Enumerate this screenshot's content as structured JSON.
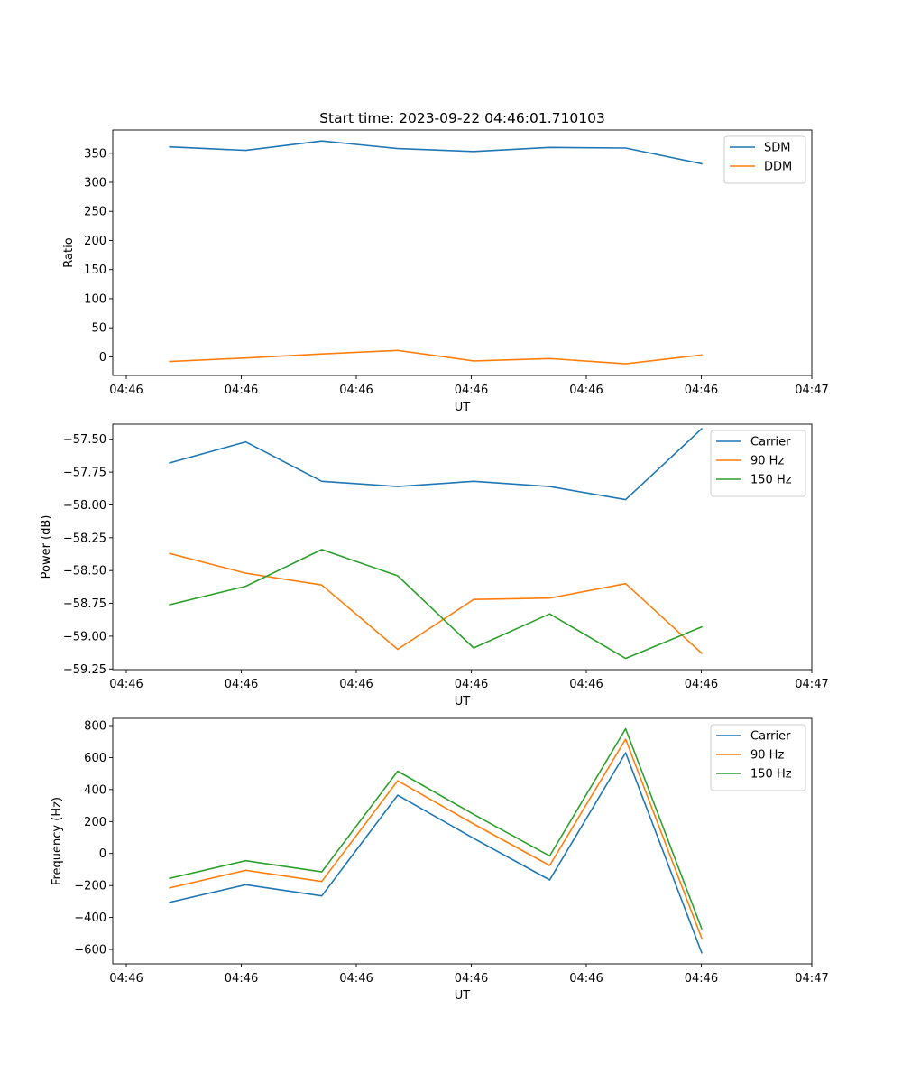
{
  "chart_data": [
    {
      "type": "line",
      "title": "Start time: 2023-09-22 04:46:01.710103",
      "xlabel": "UT",
      "ylabel": "Ratio",
      "x_tick_labels": [
        "04:46",
        "04:46",
        "04:46",
        "04:46",
        "04:46",
        "04:46",
        "04:47"
      ],
      "x_index_range": [
        -0.75,
        8.45
      ],
      "ylim": [
        -32,
        390
      ],
      "y_ticks": [
        0,
        50,
        100,
        150,
        200,
        250,
        300,
        350
      ],
      "y_tick_labels": [
        "0",
        "50",
        "100",
        "150",
        "200",
        "250",
        "300",
        "350"
      ],
      "legend": "top-right",
      "series": [
        {
          "name": "SDM",
          "color": "#1f77b4",
          "values": [
            361,
            355,
            371,
            358,
            353,
            360,
            359,
            332
          ]
        },
        {
          "name": "DDM",
          "color": "#ff7f0e",
          "values": [
            -8,
            -2,
            5,
            11,
            -7,
            -3,
            -12,
            3
          ]
        }
      ]
    },
    {
      "type": "line",
      "title": "",
      "xlabel": "UT",
      "ylabel": "Power (dB)",
      "x_tick_labels": [
        "04:46",
        "04:46",
        "04:46",
        "04:46",
        "04:46",
        "04:46",
        "04:47"
      ],
      "x_index_range": [
        -0.75,
        8.45
      ],
      "ylim": [
        -59.255,
        -57.385
      ],
      "y_ticks": [
        -59.25,
        -59.0,
        -58.75,
        -58.5,
        -58.25,
        -58.0,
        -57.75,
        -57.5
      ],
      "y_tick_labels": [
        "−59.25",
        "−59.00",
        "−58.75",
        "−58.50",
        "−58.25",
        "−58.00",
        "−57.75",
        "−57.50"
      ],
      "legend": "top-right",
      "series": [
        {
          "name": "Carrier",
          "color": "#1f77b4",
          "values": [
            -57.68,
            -57.52,
            -57.82,
            -57.86,
            -57.82,
            -57.86,
            -57.96,
            -57.42
          ]
        },
        {
          "name": "90 Hz",
          "color": "#ff7f0e",
          "values": [
            -58.37,
            -58.52,
            -58.61,
            -59.1,
            -58.72,
            -58.71,
            -58.6,
            -59.13
          ]
        },
        {
          "name": "150 Hz",
          "color": "#2ca02c",
          "values": [
            -58.76,
            -58.62,
            -58.34,
            -58.54,
            -59.09,
            -58.83,
            -59.17,
            -58.93
          ]
        }
      ]
    },
    {
      "type": "line",
      "title": "",
      "xlabel": "UT",
      "ylabel": "Frequency (Hz)",
      "x_tick_labels": [
        "04:46",
        "04:46",
        "04:46",
        "04:46",
        "04:46",
        "04:46",
        "04:47"
      ],
      "x_index_range": [
        -0.75,
        8.45
      ],
      "ylim": [
        -690,
        845
      ],
      "y_ticks": [
        -600,
        -400,
        -200,
        0,
        200,
        400,
        600,
        800
      ],
      "y_tick_labels": [
        "−600",
        "−400",
        "−200",
        "0",
        "200",
        "400",
        "600",
        "800"
      ],
      "legend": "top-right",
      "series": [
        {
          "name": "Carrier",
          "color": "#1f77b4",
          "values": [
            -305,
            -195,
            -265,
            365,
            95,
            -165,
            630,
            -620
          ]
        },
        {
          "name": "90 Hz",
          "color": "#ff7f0e",
          "values": [
            -215,
            -105,
            -175,
            455,
            185,
            -75,
            715,
            -530
          ]
        },
        {
          "name": "150 Hz",
          "color": "#2ca02c",
          "values": [
            -155,
            -45,
            -115,
            515,
            245,
            -15,
            780,
            -470
          ]
        }
      ]
    }
  ]
}
